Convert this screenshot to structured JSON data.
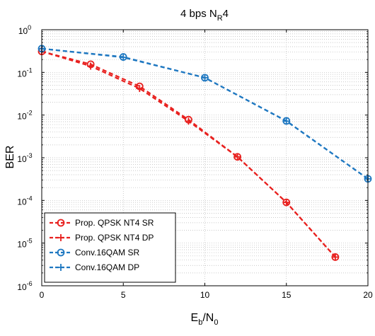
{
  "chart_data": {
    "type": "line",
    "title": {
      "base": "4 bps N",
      "sub": "R",
      "tail": "4"
    },
    "xlabel": {
      "base": "E",
      "sub1": "b",
      "mid": "/N",
      "sub2": "0"
    },
    "ylabel": "BER",
    "xlim": [
      0,
      20
    ],
    "ylim": [
      1e-06,
      1
    ],
    "yscale": "log",
    "grid": true,
    "legend_position": "bottom-left",
    "x_ticks": [
      "0",
      "5",
      "10",
      "15",
      "20"
    ],
    "y_ticks": [
      {
        "value": 1e-06,
        "base": "10",
        "exp": "-6"
      },
      {
        "value": 1e-05,
        "base": "10",
        "exp": "-5"
      },
      {
        "value": 0.0001,
        "base": "10",
        "exp": "-4"
      },
      {
        "value": 0.001,
        "base": "10",
        "exp": "-3"
      },
      {
        "value": 0.01,
        "base": "10",
        "exp": "-2"
      },
      {
        "value": 0.1,
        "base": "10",
        "exp": "-1"
      },
      {
        "value": 1,
        "base": "10",
        "exp": "0"
      }
    ],
    "series": [
      {
        "name": "Prop. QPSK NT4 SR",
        "color": "#e8201e",
        "marker": "circle",
        "x": [
          0,
          3,
          6,
          9,
          12,
          15,
          18
        ],
        "y": [
          0.31,
          0.155,
          0.047,
          0.0078,
          0.00105,
          9e-05,
          4.7e-06
        ]
      },
      {
        "name": "Prop. QPSK NT4 DP",
        "color": "#e8201e",
        "marker": "plus",
        "x": [
          0,
          3,
          6,
          9,
          12,
          15,
          18
        ],
        "y": [
          0.31,
          0.14,
          0.042,
          0.0072,
          0.00105,
          9e-05,
          4.7e-06
        ]
      },
      {
        "name": "Conv.16QAM SR",
        "color": "#1f78c1",
        "marker": "circle",
        "x": [
          0,
          5,
          10,
          15,
          20
        ],
        "y": [
          0.36,
          0.23,
          0.075,
          0.0073,
          0.00032
        ]
      },
      {
        "name": "Conv.16QAM DP",
        "color": "#1f78c1",
        "marker": "plus",
        "x": [
          0,
          5,
          10,
          15,
          20
        ],
        "y": [
          0.36,
          0.225,
          0.075,
          0.0072,
          0.00032
        ]
      }
    ]
  }
}
